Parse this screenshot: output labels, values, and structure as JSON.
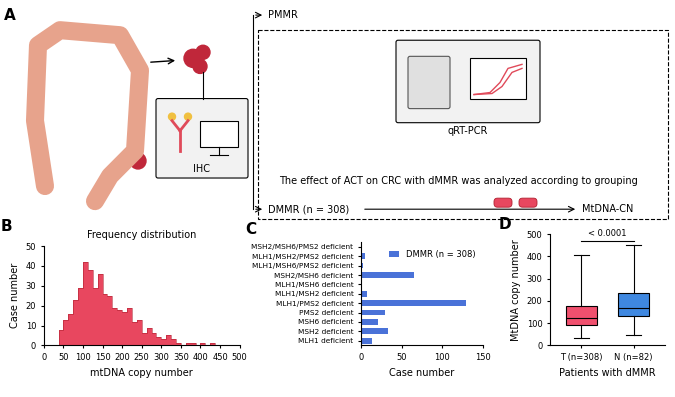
{
  "diagram": {
    "panel": "A",
    "texts": {
      "pmmr": "PMMR",
      "dmmr": "DMMR (n = 308)",
      "ihc": "IHC",
      "qrtpcr": "qRT-PCR",
      "mtdna": "MtDNA-CN",
      "note": "The effect of ACT on CRC with dMMR was analyzed according to grouping"
    }
  },
  "chart_data": [
    {
      "panel": "B",
      "type": "histogram",
      "title": "Frequency distribution",
      "x_label": "mtDNA copy number",
      "y_label": "Case number",
      "bins": [
        37.5,
        50,
        62.5,
        75,
        87.5,
        100,
        112.5,
        125,
        137.5,
        150,
        162.5,
        175,
        187.5,
        200,
        212.5,
        225,
        237.5,
        250,
        262.5,
        275,
        287.5,
        300,
        312.5,
        325,
        337.5,
        350,
        362.5,
        375,
        387.5,
        400,
        412.5,
        425,
        437.5
      ],
      "counts": [
        8,
        13,
        16,
        23,
        29,
        42,
        38,
        29,
        36,
        26,
        25,
        19,
        18,
        17,
        19,
        12,
        13,
        6,
        9,
        6,
        4,
        3,
        5,
        3,
        1,
        0,
        1,
        1,
        0,
        1,
        0,
        1
      ],
      "color": "#e8475f",
      "xlim": [
        0,
        500
      ],
      "xticks": [
        0,
        50,
        100,
        150,
        200,
        250,
        300,
        350,
        400,
        450,
        500
      ],
      "ylim": [
        0,
        50
      ],
      "yticks": [
        0,
        10,
        20,
        30,
        40,
        50
      ]
    },
    {
      "panel": "C",
      "type": "bar",
      "orientation": "horizontal",
      "categories": [
        "MSH2/MSH6/PMS2 deficient",
        "MLH1/MSH2/PMS2 deficient",
        "MLH1/MSH6/PMS2 deficient",
        "MSH2/MSH6 deficient",
        "MLH1/MSH6 deficient",
        "MLH1/MSH2 deficient",
        "MLH1/PMS2 deficient",
        "PMS2 deficient",
        "MSH6 deficient",
        "MSH2 deficient",
        "MLH1 deficient"
      ],
      "series": [
        {
          "name": "DMMR (n = 308)",
          "color": "#4a72d8",
          "values": [
            1,
            5,
            2,
            65,
            1,
            7,
            129,
            29,
            21,
            33,
            14
          ]
        }
      ],
      "x_label": "Case number",
      "xlim": [
        0,
        150
      ],
      "xticks": [
        0,
        50,
        100,
        150
      ],
      "legend": "upper right"
    },
    {
      "panel": "D",
      "type": "box",
      "categories": [
        "T (n=308)",
        "N (n=82)"
      ],
      "colors": [
        "#f0506e",
        "#3f88e0"
      ],
      "stats": [
        {
          "min": 35,
          "q1": 93,
          "median": 125,
          "q3": 178,
          "max": 405
        },
        {
          "min": 45,
          "q1": 133,
          "median": 170,
          "q3": 235,
          "max": 450
        }
      ],
      "x_label": "Patients with dMMR",
      "y_label": "MtDNA copy number",
      "ylim": [
        0,
        500
      ],
      "yticks": [
        0,
        100,
        200,
        300,
        400,
        500
      ],
      "annotations": [
        {
          "text": "< 0.0001",
          "between": [
            0,
            1
          ],
          "y": 470
        }
      ]
    }
  ]
}
